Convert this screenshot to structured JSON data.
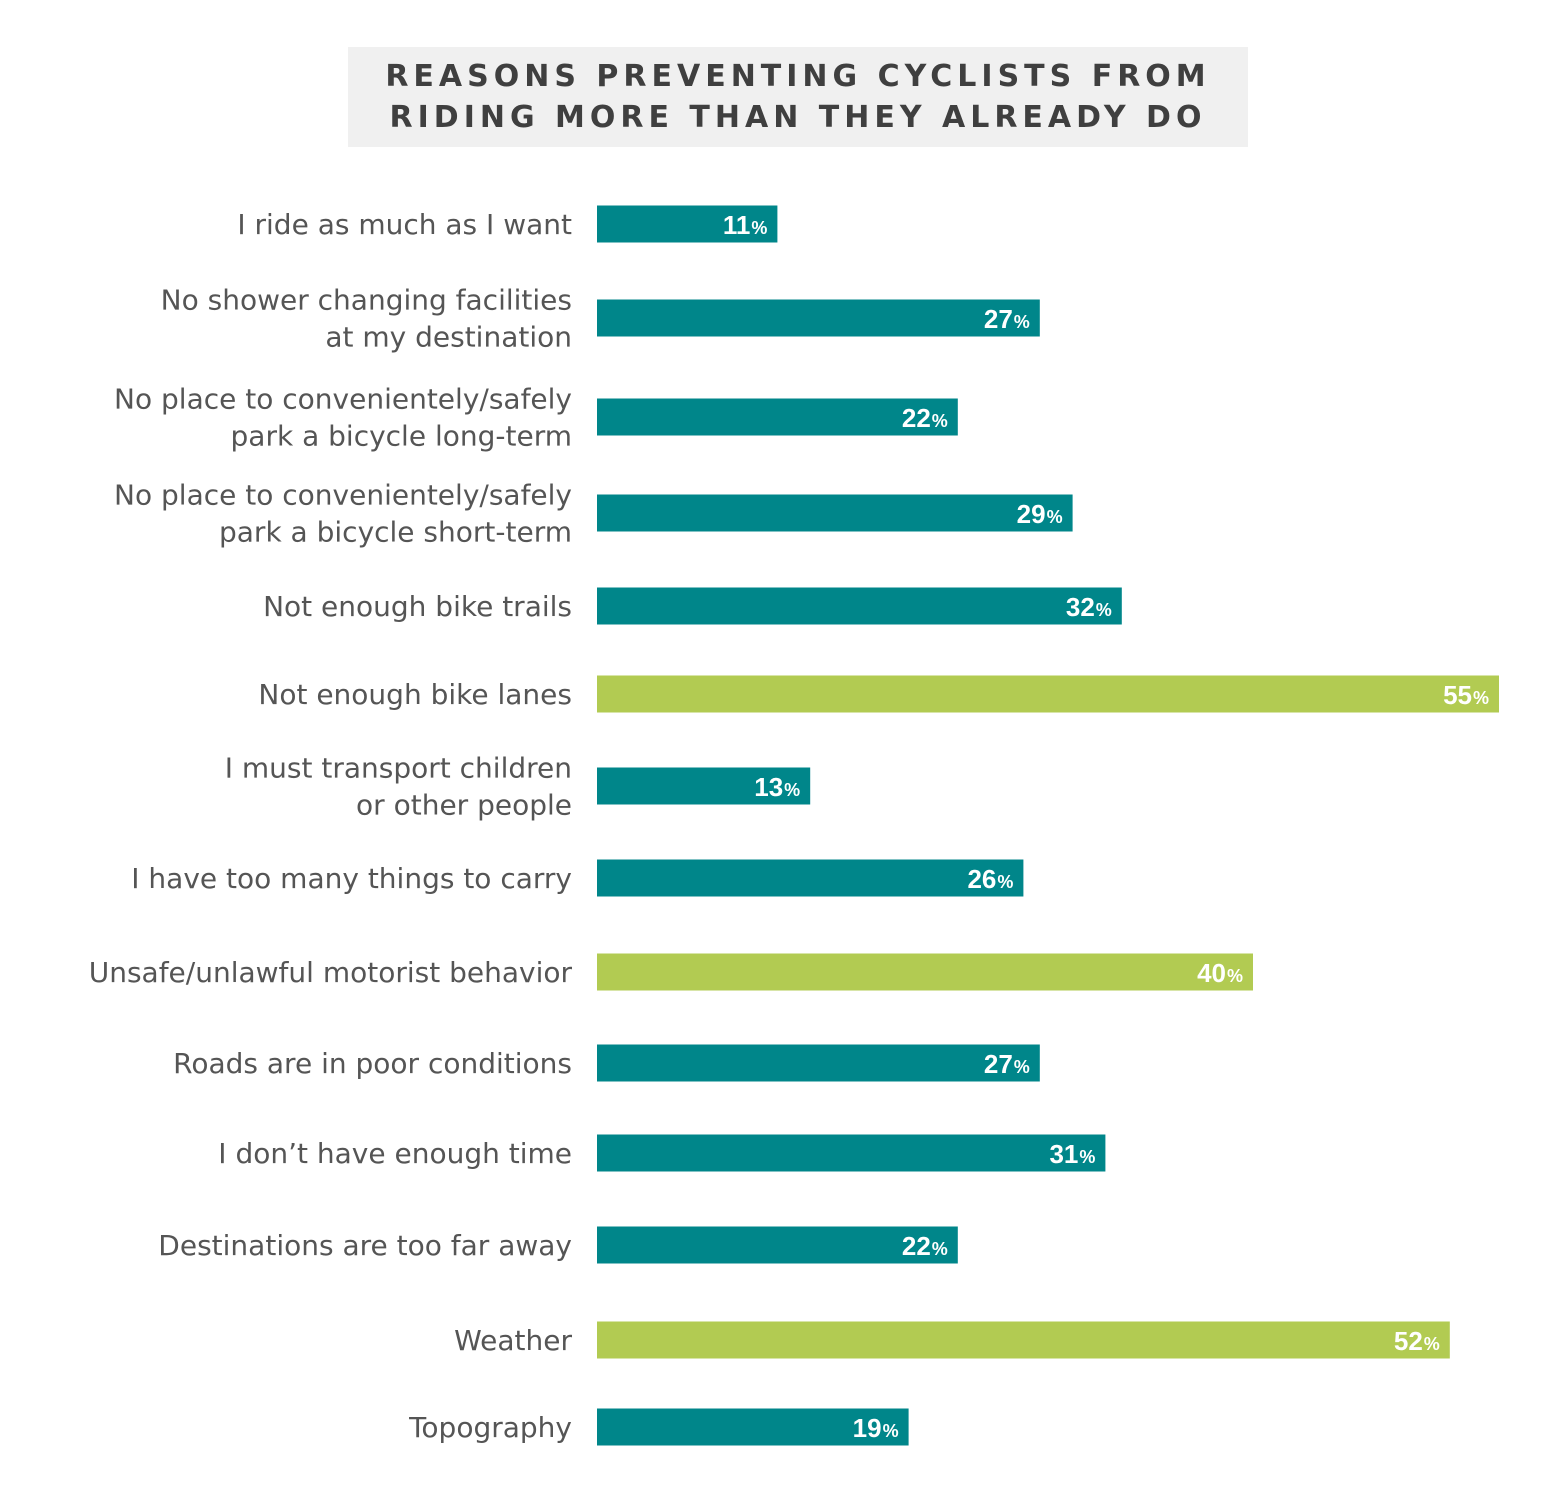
{
  "chart_data": {
    "type": "bar",
    "orientation": "horizontal",
    "title": "REASONS PREVENTING CYCLISTS FROM RIDING MORE THAN THEY ALREADY DO",
    "title_lines": [
      "REASONS PREVENTING CYCLISTS FROM",
      "RIDING MORE THAN THEY ALREADY DO"
    ],
    "value_suffix": "%",
    "categories": [
      [
        "I ride as much as I want"
      ],
      [
        "No shower changing facilities",
        "at my destination"
      ],
      [
        "No place to convenientely/safely",
        "park a bicycle long-term"
      ],
      [
        "No place to convenientely/safely",
        "park a bicycle short-term"
      ],
      [
        "Not enough bike trails"
      ],
      [
        "Not enough bike lanes"
      ],
      [
        "I must transport children",
        "or other people"
      ],
      [
        "I have too many things to carry"
      ],
      [
        "Unsafe/unlawful motorist behavior"
      ],
      [
        "Roads are in poor conditions"
      ],
      [
        "I don’t have enough time"
      ],
      [
        "Destinations are too far away"
      ],
      [
        "Weather"
      ],
      [
        "Topography"
      ]
    ],
    "values": [
      11,
      27,
      22,
      29,
      32,
      55,
      13,
      26,
      40,
      27,
      31,
      22,
      52,
      19
    ],
    "highlighted": [
      false,
      false,
      false,
      false,
      false,
      true,
      false,
      false,
      true,
      false,
      false,
      false,
      true,
      false
    ],
    "colors": {
      "default": "#00868a",
      "highlight": "#b2cb52",
      "title_bg": "#f0f0f0",
      "label_text": "#555555",
      "value_text": "#ffffff"
    },
    "xlim": [
      0,
      55
    ],
    "grid": false,
    "legend": "none"
  }
}
